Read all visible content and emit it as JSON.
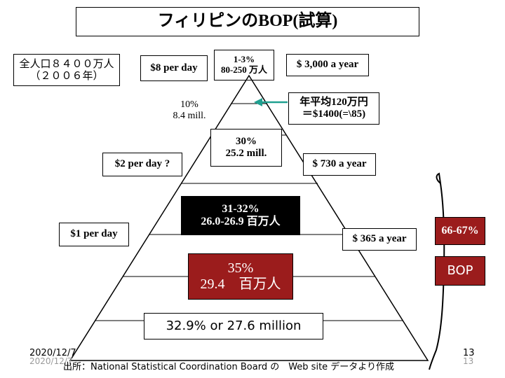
{
  "title": "フィリピンのBOP(試算)",
  "population_note": "全人口８４００万人\n（２００６年）",
  "tiers": {
    "top_share": "1-3%\n80-250 万人",
    "second_share": "10%\n8.4 mill.",
    "third_share": "30%\n25.2 mill.",
    "fourth_share": "31-32%\n26.0-26.9 百万人",
    "bottom_share": "35%\n29.4　百万人"
  },
  "per_day": {
    "eight": "$8 per day",
    "two": "$2 per day ?",
    "one": "$1 per day"
  },
  "per_year": {
    "three_thousand": "$ 3,000 a year",
    "avg_note": "年平均120万円\n＝$1400(=\\85)",
    "seven_thirty": "$ 730 a year",
    "three_sixty_five": "$ 365 a year"
  },
  "bop_percent": "66-67%",
  "bop_label": "BOP",
  "summary": "32.9% or 27.6 million",
  "date_main": "2020/12/7",
  "date_shadow": "2020/12/7",
  "page_main": "13",
  "page_shadow": "13",
  "source": "出所：National Statistical Coordination Board の　Web site データより作成",
  "colors": {
    "dark_red": "#9b1c1c",
    "black": "#000000",
    "arrow": "#20a090"
  }
}
